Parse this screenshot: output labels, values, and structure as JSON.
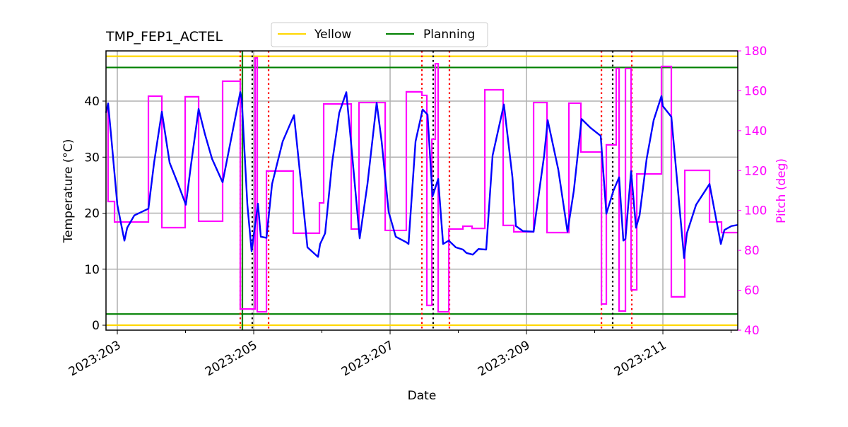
{
  "chart_data": {
    "type": "line",
    "title": "TMP_FEP1_ACTEL",
    "xlabel": "Date",
    "ylabel": "Temperature ($^\\circ$C)",
    "ylabel_display": "Temperature (°C)",
    "y2label": "Pitch (deg)",
    "xlim": [
      202.834,
      212.098
    ],
    "ylim": [
      -0.88,
      48.96
    ],
    "y2lim": [
      40,
      180
    ],
    "x_ticks": [
      {
        "value": 203,
        "label": "2023:203"
      },
      {
        "value": 205,
        "label": "2023:205"
      },
      {
        "value": 207,
        "label": "2023:207"
      },
      {
        "value": 209,
        "label": "2023:209"
      },
      {
        "value": 211,
        "label": "2023:211"
      }
    ],
    "x_minor_ticks": [
      204,
      206,
      208,
      210,
      212
    ],
    "y_ticks": [
      0,
      10,
      20,
      30,
      40
    ],
    "y2_ticks": [
      40,
      60,
      80,
      100,
      120,
      140,
      160,
      180
    ],
    "grid": true,
    "legend": {
      "placement": "top-center, above plot",
      "entries": [
        {
          "name": "Yellow",
          "color": "#ffd700"
        },
        {
          "name": "Planning",
          "color": "#008000"
        }
      ]
    },
    "limit_lines": [
      {
        "name": "Yellow",
        "values": [
          48,
          0
        ],
        "color": "#ffd700"
      },
      {
        "name": "Planning",
        "values": [
          46,
          2
        ],
        "color": "#008000"
      }
    ],
    "temperature": {
      "color": "#0000ff",
      "x": [
        202.834,
        202.865,
        202.907,
        203.0,
        203.104,
        203.145,
        203.249,
        203.456,
        203.539,
        203.653,
        203.767,
        203.891,
        204.005,
        204.078,
        204.192,
        204.285,
        204.389,
        204.544,
        204.803,
        204.824,
        204.907,
        204.969,
        205.062,
        205.104,
        205.187,
        205.269,
        205.425,
        205.591,
        205.684,
        205.788,
        205.943,
        205.974,
        206.047,
        206.15,
        206.254,
        206.358,
        206.44,
        206.554,
        206.668,
        206.803,
        206.876,
        206.979,
        207.083,
        207.238,
        207.27,
        207.373,
        207.477,
        207.549,
        207.622,
        207.705,
        207.777,
        207.86,
        207.964,
        208.068,
        208.119,
        208.213,
        208.296,
        208.409,
        208.503,
        208.669,
        208.793,
        208.845,
        208.948,
        209.104,
        209.259,
        209.311,
        209.466,
        209.601,
        209.694,
        209.808,
        209.933,
        210.088,
        210.171,
        210.275,
        210.358,
        210.42,
        210.451,
        210.534,
        210.606,
        210.658,
        210.762,
        210.865,
        210.979,
        211.0,
        211.124,
        211.311,
        211.352,
        211.487,
        211.684,
        211.85,
        211.902,
        212.005,
        212.098
      ],
      "y": [
        37.9,
        39.6,
        34.1,
        21.5,
        15.1,
        17.4,
        19.6,
        20.8,
        29.0,
        38.1,
        29.0,
        25.2,
        21.5,
        28.4,
        38.6,
        34.1,
        29.7,
        25.5,
        41.6,
        40.4,
        21.5,
        13.2,
        21.7,
        15.8,
        15.6,
        25.2,
        32.8,
        37.5,
        26.5,
        13.9,
        12.2,
        14.5,
        16.4,
        29.0,
        37.9,
        41.6,
        30.9,
        15.5,
        25.2,
        39.7,
        32.8,
        20.2,
        15.8,
        14.8,
        14.5,
        32.8,
        38.5,
        37.6,
        23.0,
        26.1,
        14.5,
        15.1,
        13.9,
        13.5,
        12.9,
        12.6,
        13.6,
        13.5,
        30.3,
        39.4,
        26.5,
        17.7,
        16.8,
        16.7,
        30.3,
        36.6,
        27.8,
        16.7,
        24.0,
        36.8,
        35.3,
        33.8,
        19.9,
        24.0,
        26.4,
        15.1,
        15.4,
        27.5,
        17.4,
        19.6,
        29.7,
        36.6,
        40.9,
        39.1,
        37.2,
        12.0,
        16.4,
        21.5,
        25.2,
        14.5,
        17.0,
        17.7,
        17.9
      ]
    },
    "pitch": {
      "color": "#ff00ff",
      "step": "post",
      "x": [
        202.834,
        202.865,
        202.959,
        203.456,
        203.653,
        203.995,
        204.192,
        204.544,
        204.803,
        205.021,
        205.052,
        205.187,
        205.58,
        205.964,
        206.026,
        206.43,
        206.544,
        206.928,
        207.238,
        207.466,
        207.539,
        207.612,
        207.663,
        207.705,
        207.86,
        208.068,
        208.202,
        208.389,
        208.658,
        208.814,
        209.104,
        209.301,
        209.622,
        209.798,
        210.099,
        210.171,
        210.316,
        210.358,
        210.451,
        210.534,
        210.617,
        210.979,
        211.124,
        211.321,
        211.684,
        211.86,
        212.098
      ],
      "y": [
        150.6,
        104.5,
        94.2,
        157.3,
        91.4,
        157.0,
        94.6,
        164.8,
        50.6,
        176.5,
        49.2,
        119.8,
        88.6,
        103.8,
        153.4,
        90.7,
        154.1,
        90.0,
        159.5,
        157.7,
        52.4,
        135.7,
        173.6,
        49.2,
        90.7,
        92.1,
        91.0,
        160.5,
        92.5,
        89.3,
        154.1,
        88.9,
        153.8,
        129.3,
        53.1,
        132.9,
        171.2,
        49.6,
        171.2,
        60.2,
        118.3,
        172.2,
        56.7,
        120.1,
        94.2,
        88.9,
        88.9
      ]
    },
    "event_lines": [
      {
        "x": 204.803,
        "color": "#ff0000",
        "style": "dotted"
      },
      {
        "x": 205.218,
        "color": "#ff0000",
        "style": "dotted"
      },
      {
        "x": 207.466,
        "color": "#ff0000",
        "style": "dotted"
      },
      {
        "x": 207.87,
        "color": "#ff0000",
        "style": "dotted"
      },
      {
        "x": 210.099,
        "color": "#ff0000",
        "style": "dotted"
      },
      {
        "x": 210.544,
        "color": "#ff0000",
        "style": "dotted"
      },
      {
        "x": 204.979,
        "color": "#000000",
        "style": "dotted"
      },
      {
        "x": 207.632,
        "color": "#000000",
        "style": "dotted"
      },
      {
        "x": 210.264,
        "color": "#000000",
        "style": "dotted"
      },
      {
        "x": 204.834,
        "color": "#008000",
        "style": "solid"
      }
    ]
  }
}
